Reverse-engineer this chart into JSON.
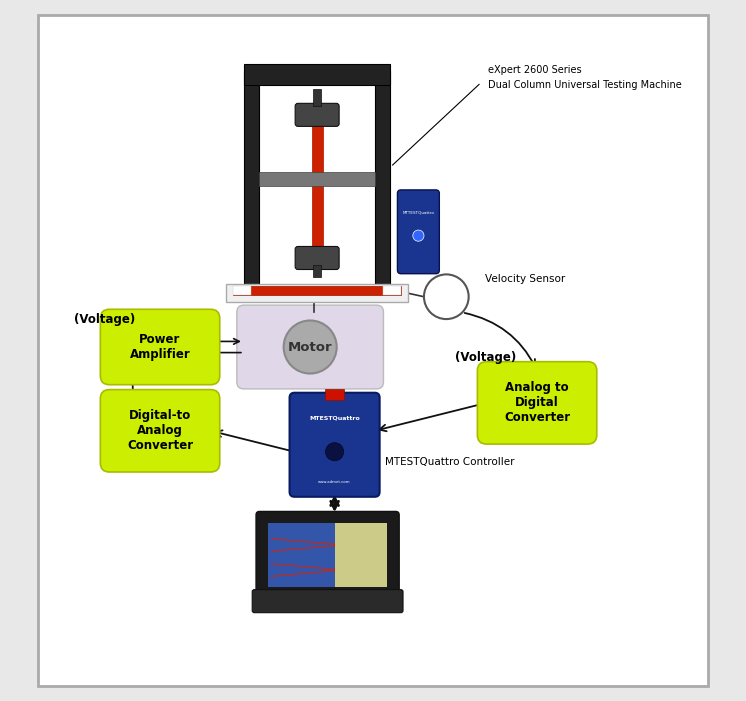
{
  "background_color": "#e8e8e8",
  "white_bg": "#ffffff",
  "border_color": "#aaaaaa",
  "yg_color": "#ccee00",
  "yg_edge": "#aabb00",
  "motor_rect_color": "#d8d8e8",
  "motor_circle_color": "#aaaaaa",
  "controller_blue": "#1a3590",
  "controller_dark": "#0a1a60",
  "machine_dark": "#1a1a1a",
  "machine_col": "#222222",
  "machine_base_light": "#e5e5e5",
  "machine_base_red": "#cc2200",
  "specimen_red": "#cc2200",
  "grip_color": "#444444",
  "crosshead_color": "#777777",
  "side_box_blue": "#1a3590",
  "laptop_body": "#222222",
  "laptop_screen": "#334488",
  "laptop_base": "#333333",
  "arrow_color": "#111111",
  "text_color": "#111111",
  "labels": {
    "machine_line1": "eXpert 2600 Series",
    "machine_line2": "Dual Column Universal Testing Machine",
    "velocity_sensor": "Velocity Sensor",
    "voltage_left": "(Voltage)",
    "voltage_right": "(Voltage)",
    "power_amplifier": "Power\nAmplifier",
    "dac": "Digital-to\nAnalog\nConverter",
    "adc": "Analog to\nDigital\nConverter",
    "motor": "Motor",
    "controller_top": "MTESTQuattro",
    "controller_label": "MTESTQuattro Controller"
  },
  "figsize": [
    7.46,
    7.01
  ],
  "dpi": 100
}
